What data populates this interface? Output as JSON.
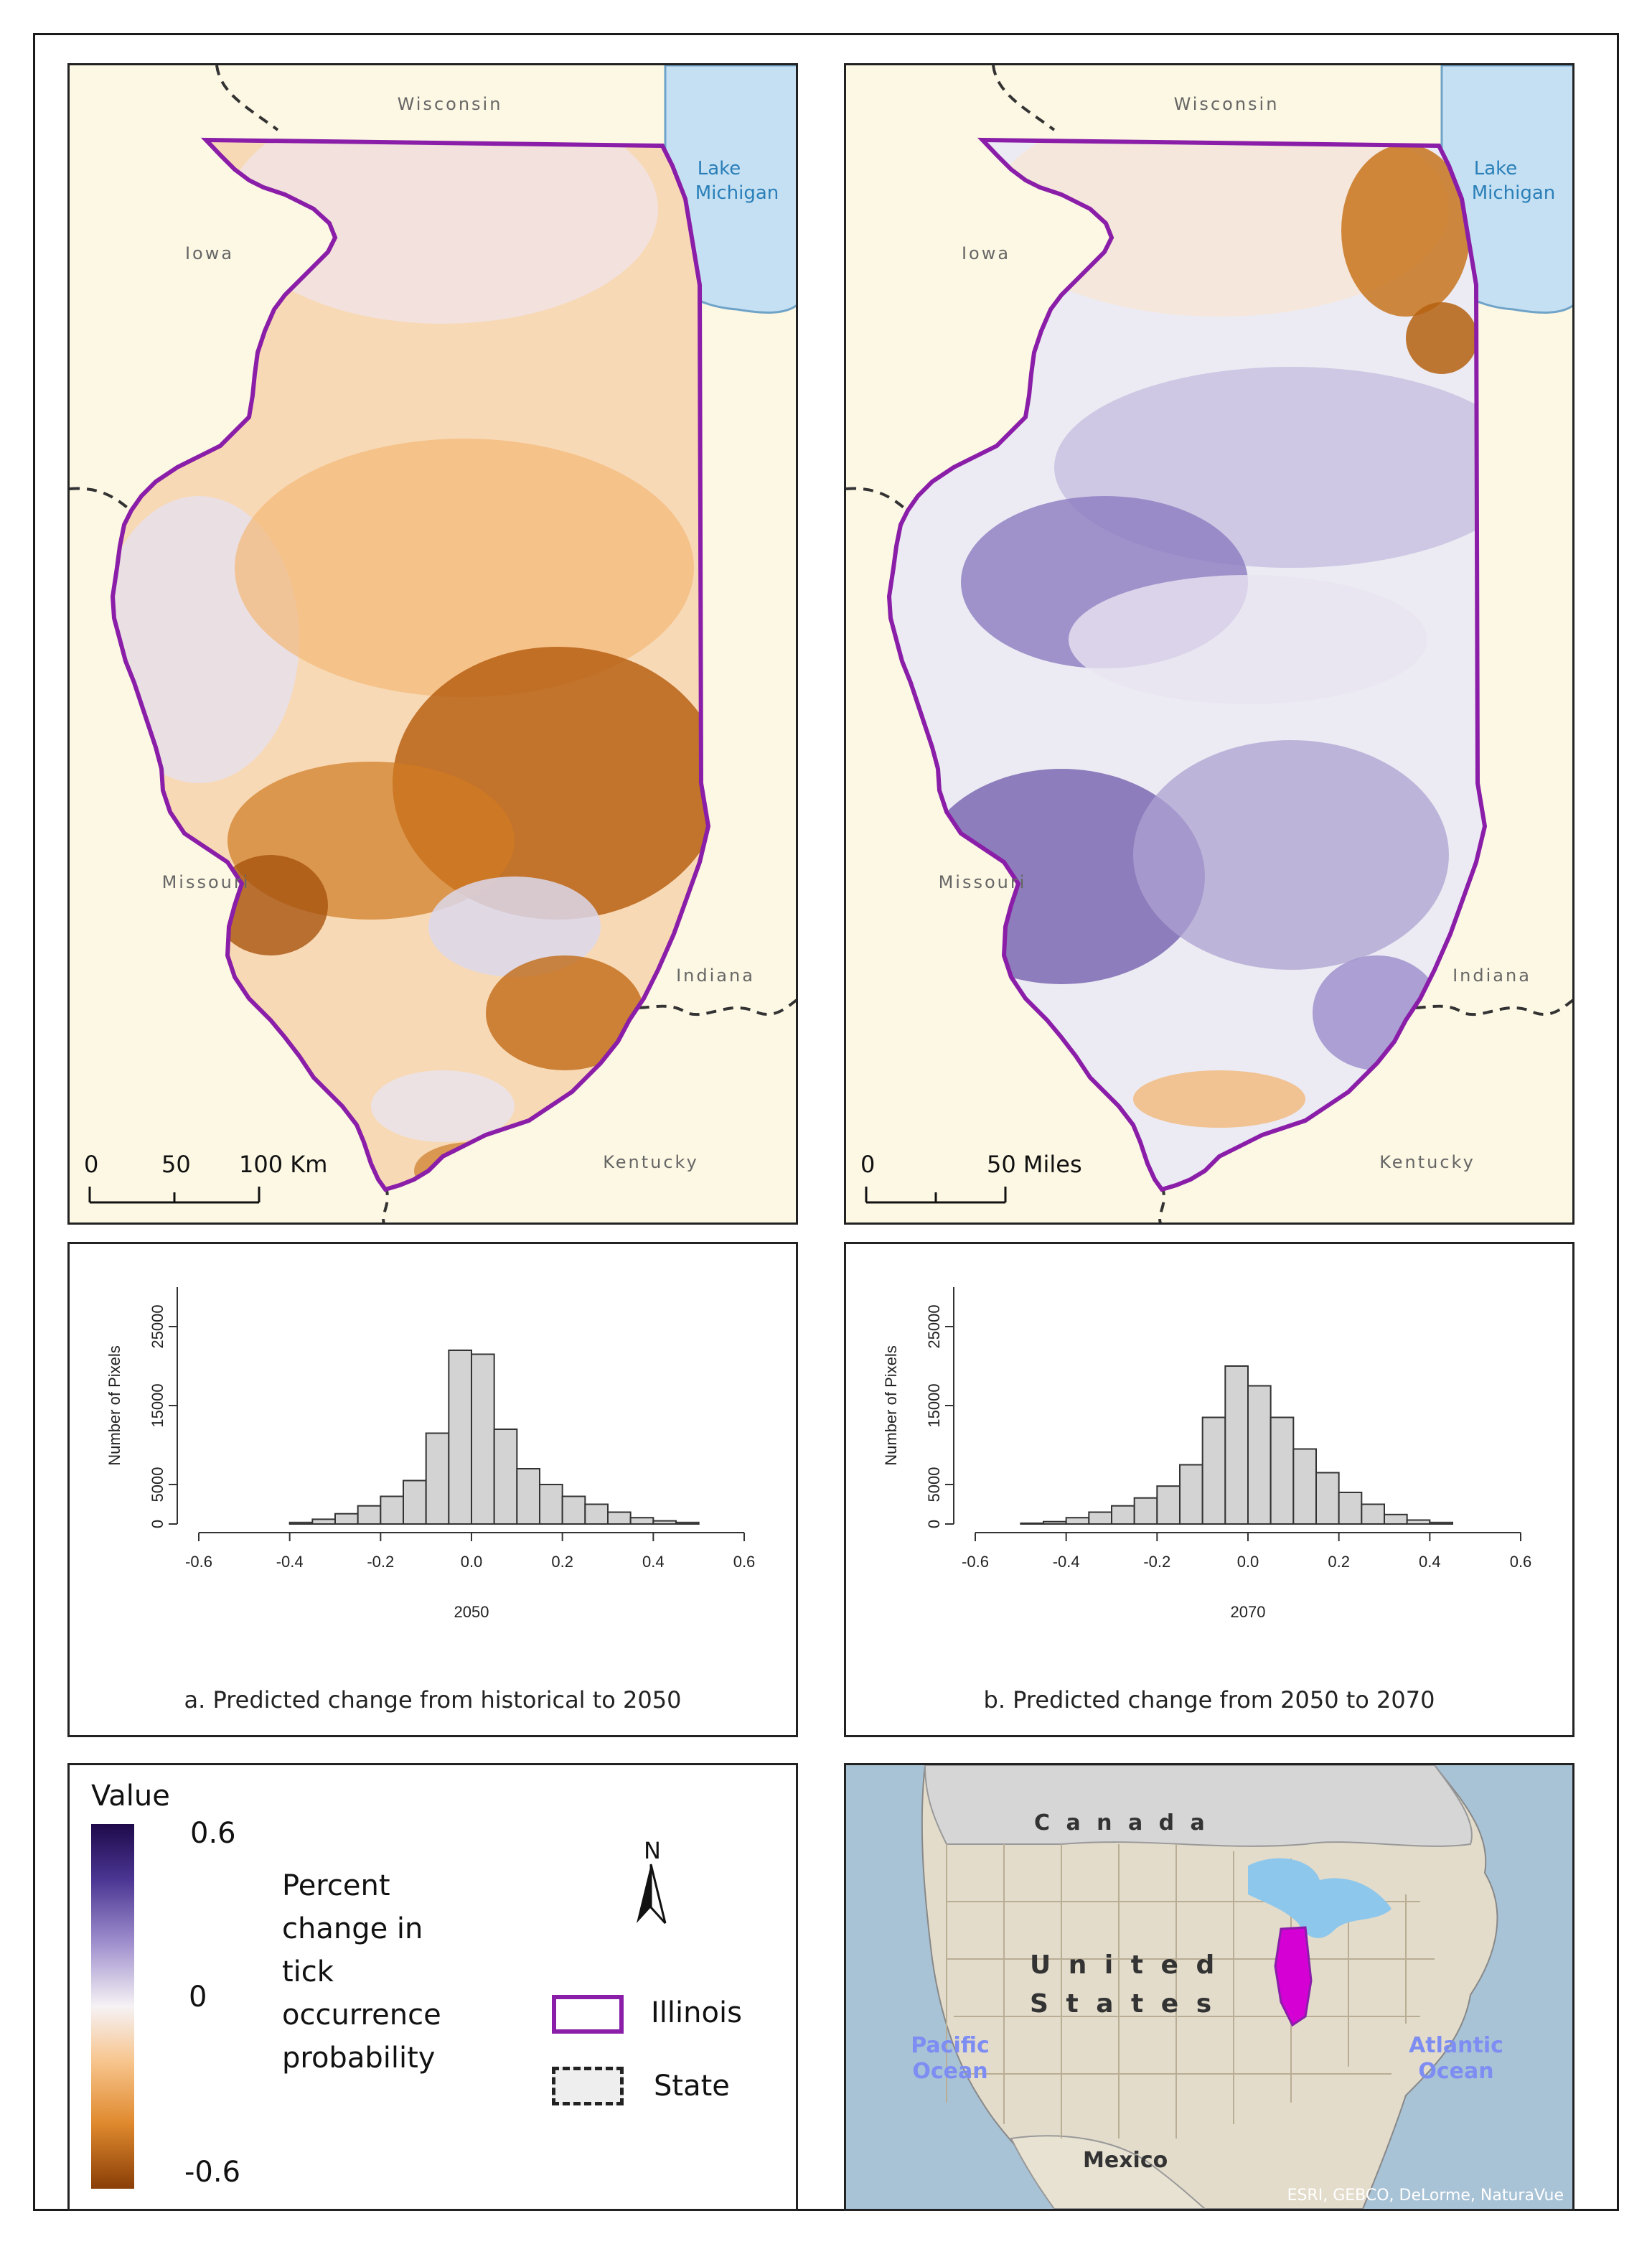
{
  "maps": [
    {
      "id": "2050",
      "labels": {
        "wisconsin": "Wisconsin",
        "lake": [
          "Lake",
          "Michigan"
        ],
        "iowa": "Iowa",
        "missouri": "Missouri",
        "indiana": "Indiana",
        "kentucky": "Kentucky"
      },
      "scalebar": {
        "ticks": [
          "0",
          "50",
          "100 Km"
        ]
      },
      "trend": "mostly-negative"
    },
    {
      "id": "2070",
      "labels": {
        "wisconsin": "Wisconsin",
        "lake": [
          "Lake",
          "Michigan"
        ],
        "iowa": "Iowa",
        "missouri": "Missouri",
        "indiana": "Indiana",
        "kentucky": "Kentucky"
      },
      "scalebar": {
        "ticks": [
          "0",
          "50 Miles"
        ]
      },
      "trend": "mostly-positive"
    }
  ],
  "chart_data": [
    {
      "type": "bar",
      "title": "",
      "xlabel": "2050",
      "ylabel": "Number of Pixels",
      "xlim": [
        -0.6,
        0.6
      ],
      "xticks": [
        "-0.6",
        "-0.4",
        "-0.2",
        "0.0",
        "0.2",
        "0.4",
        "0.6"
      ],
      "ylim": [
        0,
        30000
      ],
      "yticks": [
        "0",
        "5000",
        "15000",
        "25000"
      ],
      "bin_width": 0.05,
      "bin_starts": [
        -0.4,
        -0.35,
        -0.3,
        -0.25,
        -0.2,
        -0.15,
        -0.1,
        -0.05,
        0.0,
        0.05,
        0.1,
        0.15,
        0.2,
        0.25,
        0.3,
        0.35,
        0.4,
        0.45
      ],
      "values": [
        200,
        600,
        1300,
        2300,
        3500,
        5500,
        11500,
        22000,
        21500,
        12000,
        7000,
        5000,
        3500,
        2500,
        1500,
        800,
        400,
        200
      ]
    },
    {
      "type": "bar",
      "title": "",
      "xlabel": "2070",
      "ylabel": "Number of Pixels",
      "xlim": [
        -0.6,
        0.6
      ],
      "xticks": [
        "-0.6",
        "-0.4",
        "-0.2",
        "0.0",
        "0.2",
        "0.4",
        "0.6"
      ],
      "ylim": [
        0,
        30000
      ],
      "yticks": [
        "0",
        "5000",
        "15000",
        "25000"
      ],
      "bin_width": 0.05,
      "bin_starts": [
        -0.5,
        -0.45,
        -0.4,
        -0.35,
        -0.3,
        -0.25,
        -0.2,
        -0.15,
        -0.1,
        -0.05,
        0.0,
        0.05,
        0.1,
        0.15,
        0.2,
        0.25,
        0.3,
        0.35,
        0.4
      ],
      "values": [
        100,
        300,
        800,
        1500,
        2300,
        3300,
        4800,
        7500,
        13500,
        20000,
        17500,
        13500,
        9500,
        6500,
        4000,
        2500,
        1200,
        500,
        200
      ]
    }
  ],
  "captions": {
    "a": "a. Predicted change from historical to 2050",
    "b": "b. Predicted change from 2050 to 2070"
  },
  "legend": {
    "title": "Value",
    "max": "0.6",
    "mid": "0",
    "min": "-0.6",
    "description": [
      "Percent",
      "change in",
      "tick",
      "occurrence",
      "probability"
    ],
    "north": "N",
    "illinois": "Illinois",
    "state": "State",
    "colors": {
      "max": "#1e0a4a",
      "high": "#7b67b3",
      "mid": "#f6f2f5",
      "low": "#f5b36e",
      "min": "#8a3e07",
      "illinois": "#8a1ea8"
    }
  },
  "inset": {
    "canada": "C a n a d a",
    "us_line1": "U n i t e d",
    "us_line2": "S t a t e s",
    "pacific": [
      "Pacific",
      "Ocean"
    ],
    "atlantic": [
      "Atlantic",
      "Ocean"
    ],
    "mexico": "Mexico",
    "credit": "ESRI, GEBCO, DeLorme, NaturaVue"
  }
}
